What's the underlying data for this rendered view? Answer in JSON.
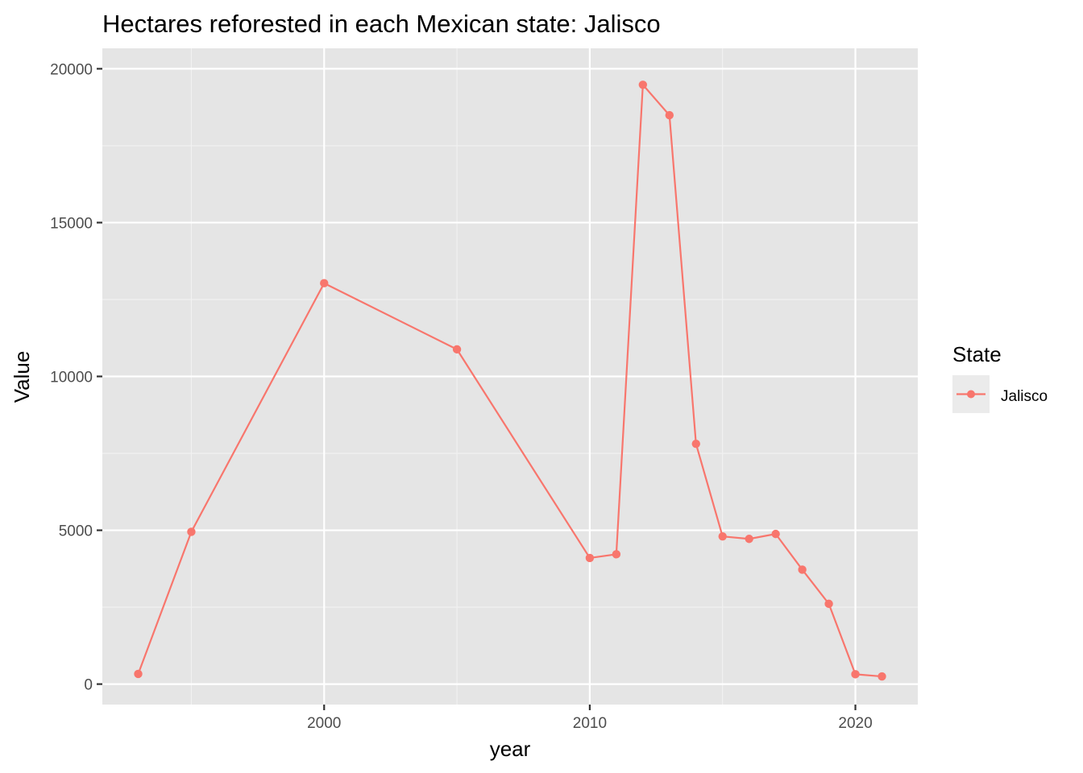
{
  "chart_data": {
    "type": "line",
    "title": "Hectares reforested in each Mexican state: Jalisco",
    "xlabel": "year",
    "ylabel": "Value",
    "xlim": [
      1991.65,
      2022.35
    ],
    "ylim": [
      -665,
      20665
    ],
    "x_ticks": [
      2000,
      2010,
      2020
    ],
    "x_tick_labels": [
      "2000",
      "2010",
      "2020"
    ],
    "x_minor_ticks": [
      1995,
      2005,
      2015
    ],
    "y_ticks": [
      0,
      5000,
      10000,
      15000,
      20000
    ],
    "y_tick_labels": [
      "0",
      "5000",
      "10000",
      "15000",
      "20000"
    ],
    "y_minor_ticks": [
      2500,
      7500,
      12500,
      17500
    ],
    "grid": true,
    "legend": {
      "title": "State",
      "position": "right"
    },
    "series": [
      {
        "name": "Jalisco",
        "color": "#F8766D",
        "x": [
          1993,
          1995,
          2000,
          2005,
          2010,
          2011,
          2012,
          2013,
          2014,
          2015,
          2016,
          2017,
          2018,
          2019,
          2020,
          2021
        ],
        "values": [
          330,
          4950,
          13030,
          10880,
          4100,
          4220,
          19480,
          18490,
          7810,
          4800,
          4720,
          4880,
          3720,
          2610,
          320,
          250
        ]
      }
    ]
  },
  "colors": {
    "panel_background": "#E5E5E5",
    "grid_major": "#FFFFFF",
    "grid_minor": "#F2F2F2",
    "legend_key_background": "#EBEBEB",
    "tick_color": "#333333"
  }
}
